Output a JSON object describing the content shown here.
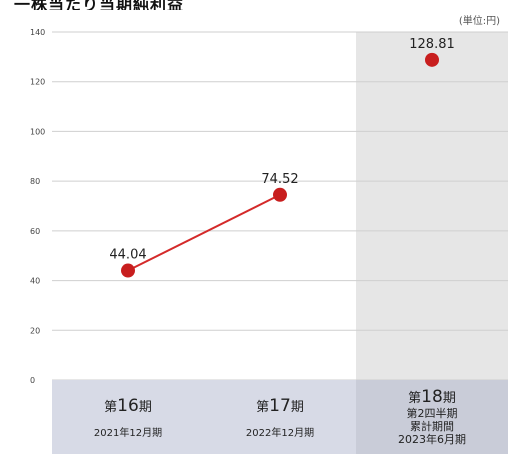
{
  "header": {
    "title": "一株当たり当期純利益",
    "unit": "(単位:円)"
  },
  "chart_data": {
    "type": "line",
    "title": "一株当たり当期純利益",
    "unit": "(単位:円)",
    "ylim": [
      0,
      140
    ],
    "yticks": [
      0,
      20,
      40,
      60,
      80,
      100,
      120,
      140
    ],
    "grid": true,
    "categories": [
      "第16期 2021年12月期",
      "第17期 2022年12月期",
      "第18期 第2四半期累計期間 2023年6月期"
    ],
    "values": [
      44.04,
      74.52,
      128.81
    ],
    "value_labels": [
      "44.04",
      "74.52",
      "128.81"
    ],
    "connected": [
      true,
      true,
      false
    ],
    "highlighted_category": 2,
    "category_labels": [
      {
        "prefix": "第",
        "num": "16",
        "suffix": "期",
        "sub": [
          "2021年12月期"
        ]
      },
      {
        "prefix": "第",
        "num": "17",
        "suffix": "期",
        "sub": [
          "2022年12月期"
        ]
      },
      {
        "prefix": "第",
        "num": "18",
        "suffix": "期",
        "sub": [
          "第2四半期",
          "累計期間",
          "2023年6月期"
        ]
      }
    ],
    "colors": {
      "line": "#d42a2a",
      "marker": "#c81e1e",
      "highlight_bg": "#e6e6e6",
      "axis_band": "#d7dae6",
      "axis_band_highlight": "#c9ccd8",
      "grid": "#cfcfcf"
    }
  }
}
